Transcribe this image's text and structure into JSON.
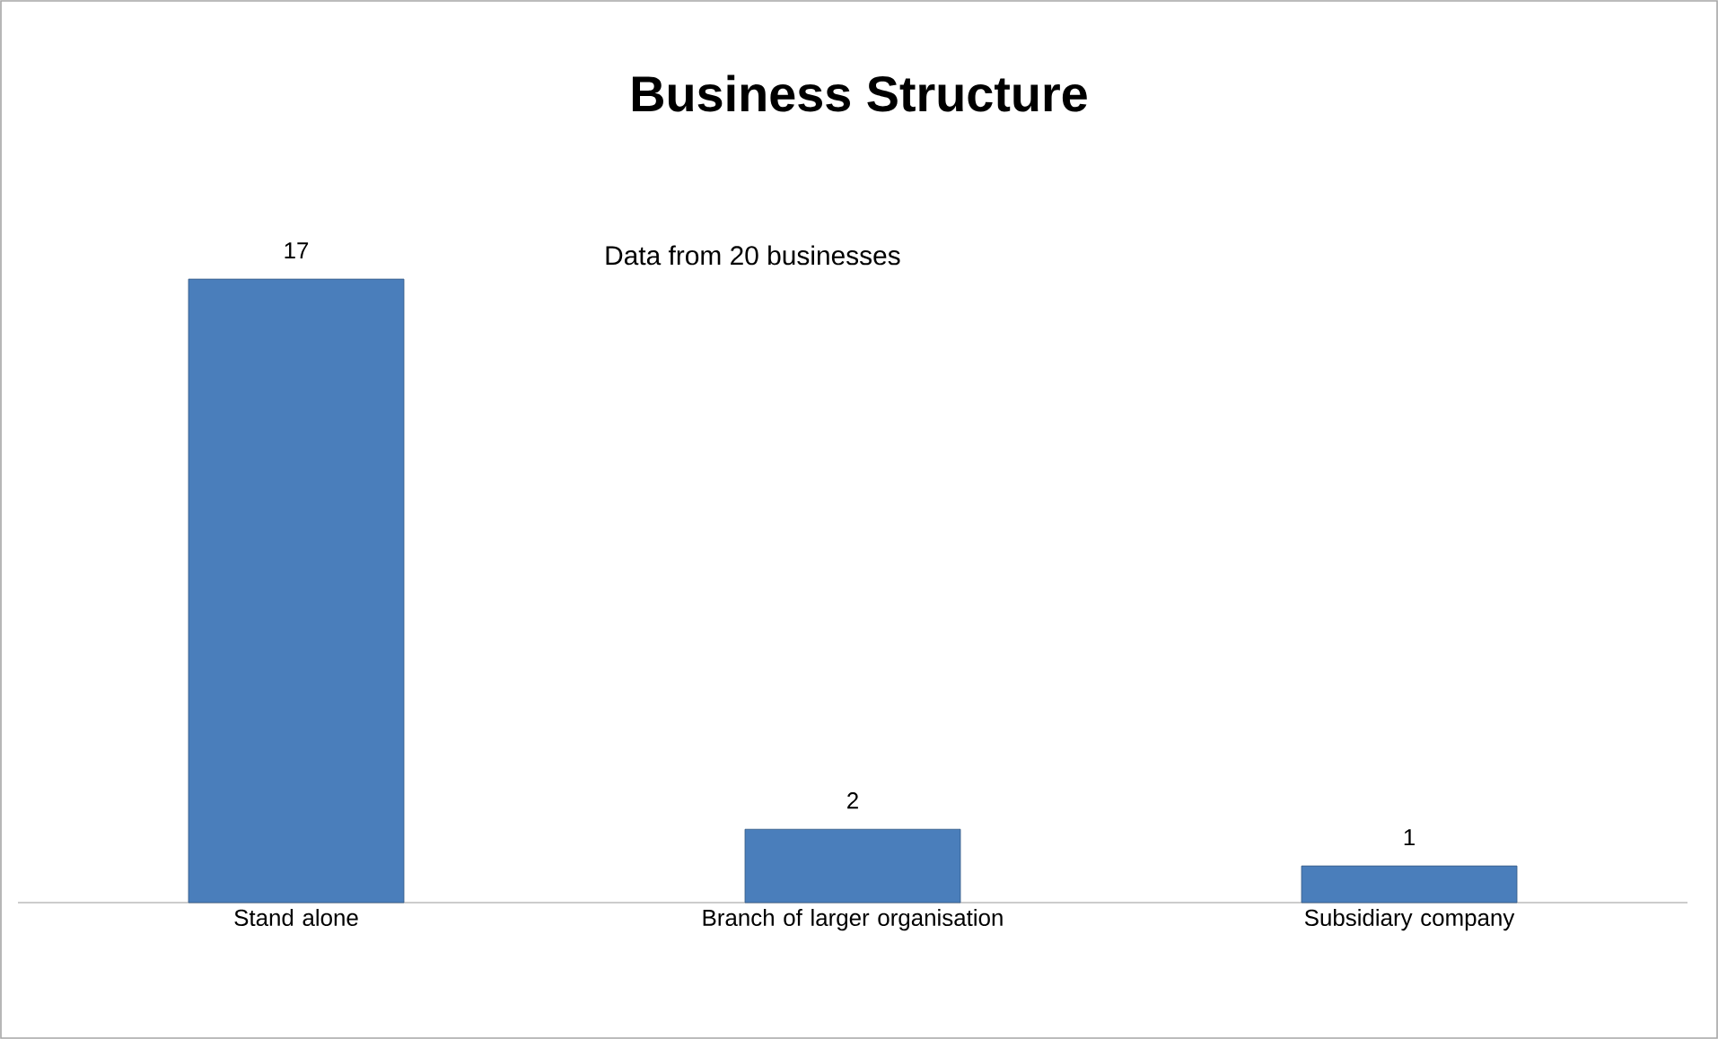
{
  "chart_data": {
    "type": "bar",
    "title": "Business Structure",
    "categories": [
      "Stand alone",
      "Branch of larger organisation",
      "Subsidiary company"
    ],
    "values": [
      17,
      2,
      1
    ],
    "color": "#4a7ebb",
    "data_labels": true,
    "annotations": [
      "Data from 20 businesses"
    ]
  }
}
